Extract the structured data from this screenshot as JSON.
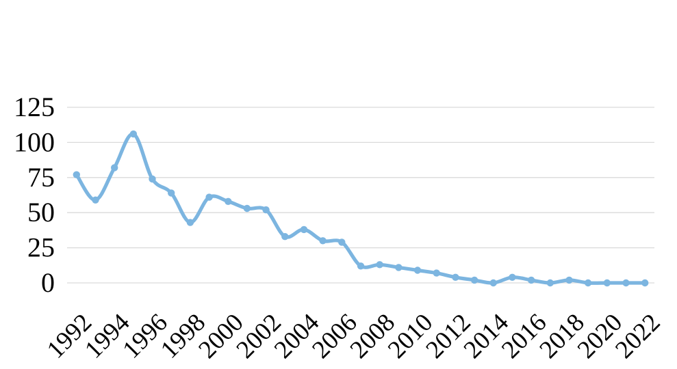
{
  "page": {
    "background": "#ffffff"
  },
  "chart_data": {
    "type": "line",
    "title": "",
    "xlabel": "",
    "ylabel": "",
    "x": [
      1992,
      1993,
      1994,
      1995,
      1996,
      1997,
      1998,
      1999,
      2000,
      2001,
      2002,
      2003,
      2004,
      2005,
      2006,
      2007,
      2008,
      2009,
      2010,
      2011,
      2012,
      2013,
      2014,
      2015,
      2016,
      2017,
      2018,
      2019,
      2020,
      2021,
      2022
    ],
    "values": [
      77,
      59,
      82,
      106,
      74,
      64,
      43,
      61,
      58,
      53,
      52,
      33,
      38,
      30,
      29,
      12,
      13,
      11,
      9,
      7,
      4,
      2,
      0,
      4,
      2,
      0,
      2,
      0,
      0,
      0,
      0
    ],
    "y_ticks": [
      0,
      25,
      50,
      75,
      100,
      125
    ],
    "x_tick_labels": [
      "1992",
      "1994",
      "1996",
      "1998",
      "2000",
      "2002",
      "2004",
      "2006",
      "2008",
      "2010",
      "2012",
      "2014",
      "2016",
      "2018",
      "2020",
      "2022"
    ],
    "ylim": [
      0,
      125
    ],
    "grid": "horizontal",
    "grid_color": "#d9d9d9",
    "axis_text_color": "#000000",
    "line_color": "#7cb5e0",
    "marker": "circle",
    "smooth": true,
    "legend": "none"
  }
}
